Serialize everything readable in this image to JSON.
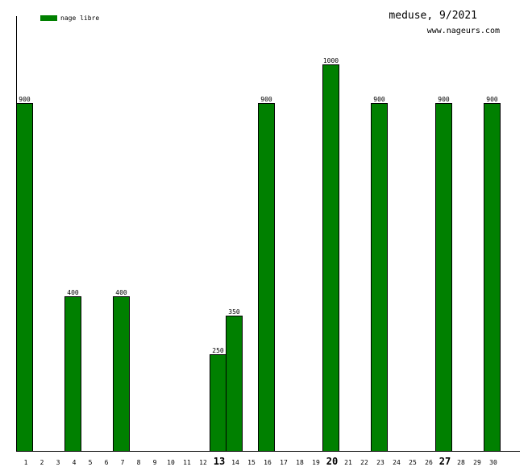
{
  "chart_data": {
    "type": "bar",
    "title": "meduse, 9/2021",
    "subtitle": "www.nageurs.com",
    "categories": [
      "1",
      "2",
      "3",
      "4",
      "5",
      "6",
      "7",
      "8",
      "9",
      "10",
      "11",
      "12",
      "13",
      "14",
      "15",
      "16",
      "17",
      "18",
      "19",
      "20",
      "21",
      "22",
      "23",
      "24",
      "25",
      "26",
      "27",
      "28",
      "29",
      "30"
    ],
    "bold_categories": [
      "13",
      "20",
      "27"
    ],
    "series": [
      {
        "name": "nage libre",
        "color": "#008000",
        "values": [
          900,
          0,
          0,
          400,
          0,
          0,
          400,
          0,
          0,
          0,
          0,
          0,
          250,
          350,
          0,
          900,
          0,
          0,
          0,
          1000,
          0,
          0,
          900,
          0,
          0,
          0,
          900,
          0,
          0,
          900
        ]
      }
    ],
    "ylim": [
      0,
      1000
    ],
    "grid": false,
    "legend": "top-left"
  }
}
